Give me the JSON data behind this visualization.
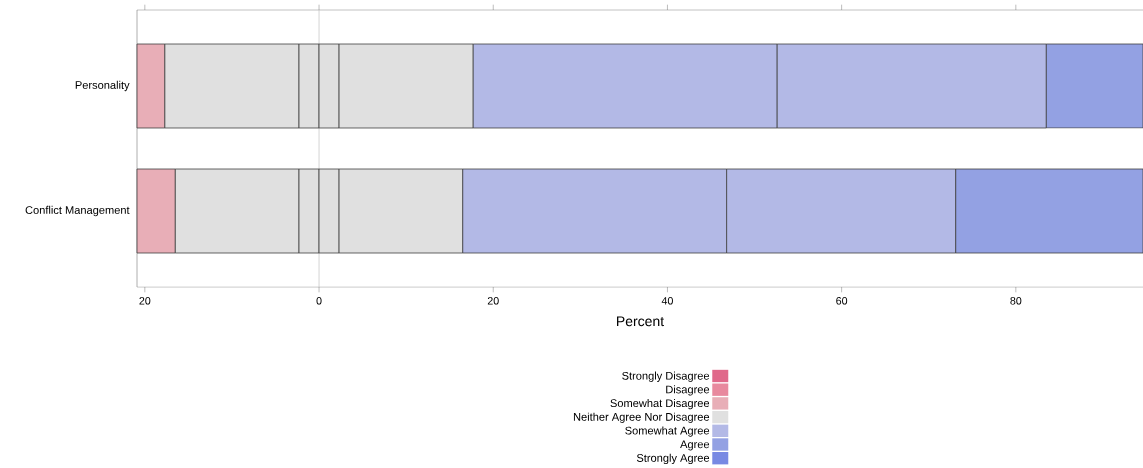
{
  "chart_data": {
    "type": "bar",
    "orientation": "horizontal",
    "xlabel": "Percent",
    "categories": [
      "Personality",
      "Conflict Management"
    ],
    "series": [
      {
        "name": "Strongly Disagree",
        "color": "#e0698a",
        "values": [
          null,
          null
        ]
      },
      {
        "name": "Disagree",
        "color": "#e8899e",
        "values": [
          null,
          null
        ]
      },
      {
        "name": "Somewhat Disagree",
        "color": "#e8aeb7",
        "base": [
          -20.9,
          -20.9
        ],
        "values": [
          3.2,
          4.4
        ]
      },
      {
        "name": "Neither Agree Nor Disagree",
        "color": "#e0e0e0",
        "base": [
          -17.7,
          -16.5
        ],
        "values": [
          15.4,
          14.2
        ]
      },
      {
        "color": "#e0e0e0",
        "base": [
          -2.3,
          -2.3
        ],
        "values": [
          2.3,
          2.3
        ]
      },
      {
        "color": "#e0e0e0",
        "base": [
          0,
          0
        ],
        "values": [
          2.3,
          2.3
        ]
      },
      {
        "color": "#e0e0e0",
        "base": [
          2.3,
          2.3
        ],
        "values": [
          15.4,
          14.2
        ]
      },
      {
        "name": "Somewhat Agree",
        "color": "#b3b9e6",
        "base": [
          17.7,
          16.5
        ],
        "values": [
          34.9,
          30.3
        ]
      },
      {
        "color": "#b3b9e6",
        "base": [
          52.6,
          46.8
        ],
        "values": [
          30.9,
          26.3
        ]
      },
      {
        "name": "Agree",
        "color": "#93a1e3",
        "base": [
          83.5,
          73.1
        ],
        "values": [
          11.1,
          21.5
        ]
      },
      {
        "name": "Strongly Agree",
        "color": "#7889e3",
        "values": [
          null,
          null
        ]
      }
    ],
    "xlim": [
      -20.9,
      94.6
    ],
    "xticks": [
      {
        "value": -20,
        "label": "20"
      },
      0,
      20,
      40,
      60,
      80
    ],
    "ref_lines": [
      {
        "axis": "x",
        "value": 0,
        "color": "#bfbfbf"
      }
    ],
    "legend": "bottom",
    "grid": false
  }
}
